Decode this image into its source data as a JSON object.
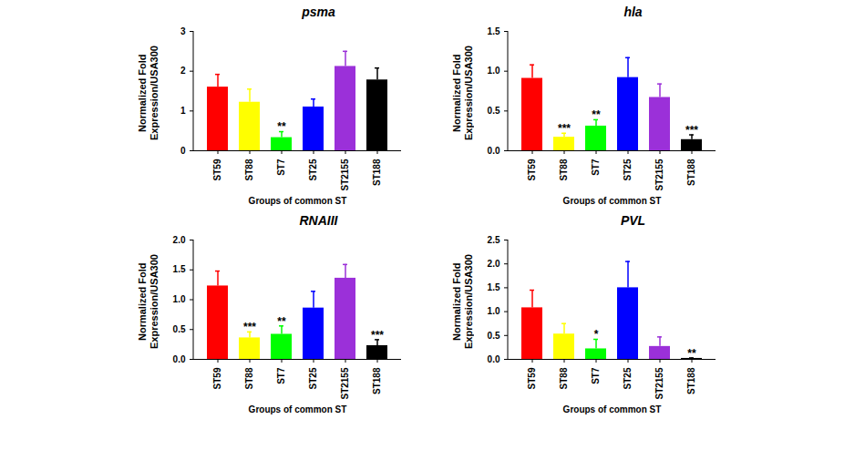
{
  "chart_data": [
    {
      "type": "bar",
      "title": "psma",
      "categories": [
        "ST59",
        "ST88",
        "ST7",
        "ST25",
        "ST2155",
        "ST188"
      ],
      "values": [
        1.6,
        1.22,
        0.33,
        1.1,
        2.12,
        1.78
      ],
      "errors": [
        0.32,
        0.33,
        0.15,
        0.2,
        0.38,
        0.3
      ],
      "significance": [
        null,
        null,
        "**",
        null,
        null,
        null
      ],
      "colors": [
        "#ff0000",
        "#ffff00",
        "#00ff00",
        "#0000ff",
        "#9b30d9",
        "#000000"
      ],
      "ylim": [
        0,
        3
      ],
      "yticks": [
        0,
        1,
        2,
        3
      ],
      "x_label": "Groups of common ST",
      "y_label": "Normalized Fold\nExpression/USA300"
    },
    {
      "type": "bar",
      "title": "hla",
      "categories": [
        "ST59",
        "ST88",
        "ST7",
        "ST25",
        "ST2155",
        "ST188"
      ],
      "values": [
        0.91,
        0.17,
        0.31,
        0.92,
        0.67,
        0.14
      ],
      "errors": [
        0.17,
        0.05,
        0.08,
        0.25,
        0.17,
        0.06
      ],
      "significance": [
        null,
        "***",
        "**",
        null,
        null,
        "***"
      ],
      "colors": [
        "#ff0000",
        "#ffff00",
        "#00ff00",
        "#0000ff",
        "#9b30d9",
        "#000000"
      ],
      "ylim": [
        0,
        1.5
      ],
      "yticks": [
        {
          "value": 0,
          "label": "0.0"
        },
        0.5,
        {
          "value": 1,
          "label": "1.0"
        },
        1.5
      ],
      "x_label": "Groups of common ST",
      "y_label": "Normalized Fold\nExpression/USA300"
    },
    {
      "type": "bar",
      "title": "RNAIII",
      "categories": [
        "ST59",
        "ST88",
        "ST7",
        "ST25",
        "ST2155",
        "ST188"
      ],
      "values": [
        1.23,
        0.36,
        0.42,
        0.86,
        1.36,
        0.23
      ],
      "errors": [
        0.25,
        0.1,
        0.14,
        0.28,
        0.23,
        0.1
      ],
      "significance": [
        null,
        "***",
        "**",
        null,
        null,
        "***"
      ],
      "colors": [
        "#ff0000",
        "#ffff00",
        "#00ff00",
        "#0000ff",
        "#9b30d9",
        "#000000"
      ],
      "ylim": [
        0,
        2
      ],
      "yticks": [
        {
          "value": 0,
          "label": "0.0"
        },
        0.5,
        {
          "value": 1,
          "label": "1.0"
        },
        1.5,
        {
          "value": 2,
          "label": "2.0"
        }
      ],
      "x_label": "Groups of common ST",
      "y_label": "Normalized Fold\nExpression/USA300"
    },
    {
      "type": "bar",
      "title": "PVL",
      "categories": [
        "ST59",
        "ST88",
        "ST7",
        "ST25",
        "ST2155",
        "ST188"
      ],
      "values": [
        1.08,
        0.53,
        0.22,
        1.5,
        0.27,
        0.02
      ],
      "errors": [
        0.37,
        0.22,
        0.2,
        0.55,
        0.2,
        0.01
      ],
      "significance": [
        null,
        null,
        "*",
        null,
        null,
        "**"
      ],
      "colors": [
        "#ff0000",
        "#ffff00",
        "#00ff00",
        "#0000ff",
        "#9b30d9",
        "#000000"
      ],
      "ylim": [
        0,
        2.5
      ],
      "yticks": [
        {
          "value": 0,
          "label": "0.0"
        },
        0.5,
        {
          "value": 1,
          "label": "1.0"
        },
        1.5,
        {
          "value": 2,
          "label": "2.0"
        },
        2.5
      ],
      "x_label": "Groups of common ST",
      "y_label": "Normalized Fold\nExpression/USA300"
    }
  ]
}
